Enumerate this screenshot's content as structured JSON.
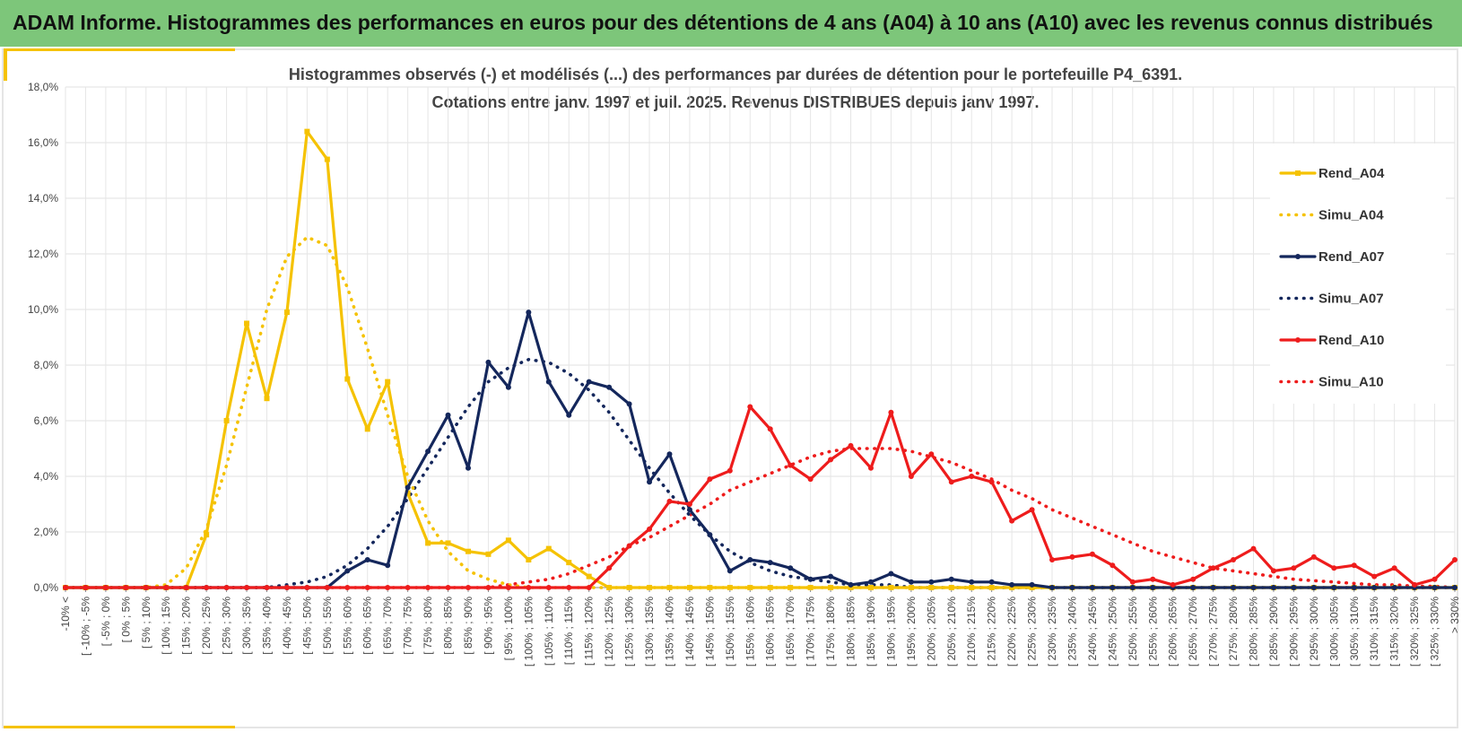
{
  "banner": {
    "title": "ADAM Informe. Histogrammes des performances en euros pour des détentions de 4 ans (A04) à 10 ans (A10) avec les revenus connus distribués"
  },
  "colors": {
    "banner_bg": "#7dc67a",
    "accent": "#f5c200",
    "A04": "#f5c200",
    "A07": "#14275c",
    "A10": "#ee1c1c"
  },
  "chart_data": {
    "type": "line",
    "title": "Histogrammes observés (-) et modélisés (...) des performances par durées de détention pour le portefeuille P4_6391.",
    "subtitle": "Cotations entre janv. 1997 et juil. 2025. Revenus DISTRIBUES depuis janv 1997.",
    "ylim": [
      0,
      18
    ],
    "yticks": [
      0,
      2,
      4,
      6,
      8,
      10,
      12,
      14,
      16,
      18
    ],
    "ytick_labels": [
      "0,0%",
      "2,0%",
      "4,0%",
      "6,0%",
      "8,0%",
      "10,0%",
      "12,0%",
      "14,0%",
      "16,0%",
      "18,0%"
    ],
    "grid": true,
    "legend_position": "right",
    "categories": [
      "-10% <",
      "[ -10% ; -5%",
      "[ -5% ; 0%",
      "[ 0% ; 5%",
      "[ 5% ; 10%",
      "[ 10% ; 15%",
      "[ 15% ; 20%",
      "[ 20% ; 25%",
      "[ 25% ; 30%",
      "[ 30% ; 35%",
      "[ 35% ; 40%",
      "[ 40% ; 45%",
      "[ 45% ; 50%",
      "[ 50% ; 55%",
      "[ 55% ; 60%",
      "[ 60% ; 65%",
      "[ 65% ; 70%",
      "[ 70% ; 75%",
      "[ 75% ; 80%",
      "[ 80% ; 85%",
      "[ 85% ; 90%",
      "[ 90% ; 95%",
      "[ 95% ; 100%",
      "[ 100% ; 105%",
      "[ 105% ; 110%",
      "[ 110% ; 115%",
      "[ 115% ; 120%",
      "[ 120% ; 125%",
      "[ 125% ; 130%",
      "[ 130% ; 135%",
      "[ 135% ; 140%",
      "[ 140% ; 145%",
      "[ 145% ; 150%",
      "[ 150% ; 155%",
      "[ 155% ; 160%",
      "[ 160% ; 165%",
      "[ 165% ; 170%",
      "[ 170% ; 175%",
      "[ 175% ; 180%",
      "[ 180% ; 185%",
      "[ 185% ; 190%",
      "[ 190% ; 195%",
      "[ 195% ; 200%",
      "[ 200% ; 205%",
      "[ 205% ; 210%",
      "[ 210% ; 215%",
      "[ 215% ; 220%",
      "[ 220% ; 225%",
      "[ 225% ; 230%",
      "[ 230% ; 235%",
      "[ 235% ; 240%",
      "[ 240% ; 245%",
      "[ 245% ; 250%",
      "[ 250% ; 255%",
      "[ 255% ; 260%",
      "[ 260% ; 265%",
      "[ 265% ; 270%",
      "[ 270% ; 275%",
      "[ 275% ; 280%",
      "[ 280% ; 285%",
      "[ 285% ; 290%",
      "[ 290% ; 295%",
      "[ 295% ; 300%",
      "[ 300% ; 305%",
      "[ 305% ; 310%",
      "[ 310% ; 315%",
      "[ 315% ; 320%",
      "[ 320% ; 325%",
      "[ 325% ; 330%",
      "> 330%"
    ],
    "series": [
      {
        "name": "Rend_A04",
        "style": "solid",
        "markers": "square",
        "color": "#f5c200",
        "values": [
          0,
          0,
          0,
          0,
          0,
          0,
          0,
          1.9,
          6.0,
          9.5,
          6.8,
          9.9,
          16.4,
          15.4,
          7.5,
          5.7,
          7.4,
          3.4,
          1.6,
          1.6,
          1.3,
          1.2,
          1.7,
          1.0,
          1.4,
          0.9,
          0.4,
          0,
          0,
          0,
          0,
          0,
          0,
          0,
          0,
          0,
          0,
          0,
          0,
          0,
          0,
          0,
          0,
          0,
          0,
          0,
          0,
          0,
          0,
          0,
          0,
          0,
          0,
          0,
          0,
          0,
          0,
          0,
          0,
          0,
          0,
          0,
          0,
          0,
          0,
          0,
          0,
          0,
          0,
          0
        ]
      },
      {
        "name": "Simu_A04",
        "style": "dotted",
        "markers": "none",
        "color": "#f5c200",
        "values": [
          0,
          0,
          0,
          0,
          0,
          0.1,
          0.7,
          2.1,
          4.4,
          7.2,
          10.0,
          11.9,
          12.6,
          12.3,
          10.8,
          8.6,
          6.2,
          4.0,
          2.4,
          1.3,
          0.6,
          0.3,
          0.1,
          0,
          0,
          0,
          0,
          0,
          0,
          0,
          0,
          0,
          0,
          0,
          0,
          0,
          0,
          0,
          0,
          0,
          0,
          0,
          0,
          0,
          0,
          0,
          0,
          0,
          0,
          0,
          0,
          0,
          0,
          0,
          0,
          0,
          0,
          0,
          0,
          0,
          0,
          0,
          0,
          0,
          0,
          0,
          0,
          0,
          0,
          0
        ]
      },
      {
        "name": "Rend_A07",
        "style": "solid",
        "markers": "circle",
        "color": "#14275c",
        "values": [
          0,
          0,
          0,
          0,
          0,
          0,
          0,
          0,
          0,
          0,
          0,
          0,
          0,
          0,
          0.6,
          1.0,
          0.8,
          3.6,
          4.9,
          6.2,
          4.3,
          8.1,
          7.2,
          9.9,
          7.4,
          6.2,
          7.4,
          7.2,
          6.6,
          3.8,
          4.8,
          2.8,
          1.9,
          0.6,
          1.0,
          0.9,
          0.7,
          0.3,
          0.4,
          0.1,
          0.2,
          0.5,
          0.2,
          0.2,
          0.3,
          0.2,
          0.2,
          0.1,
          0.1,
          0,
          0,
          0,
          0,
          0,
          0,
          0,
          0,
          0,
          0,
          0,
          0,
          0,
          0,
          0,
          0,
          0,
          0,
          0,
          0,
          0
        ]
      },
      {
        "name": "Simu_A07",
        "style": "dotted",
        "markers": "none",
        "color": "#14275c",
        "values": [
          0,
          0,
          0,
          0,
          0,
          0,
          0,
          0,
          0,
          0,
          0,
          0.1,
          0.2,
          0.4,
          0.8,
          1.4,
          2.2,
          3.2,
          4.3,
          5.4,
          6.5,
          7.4,
          7.9,
          8.2,
          8.1,
          7.7,
          7.1,
          6.3,
          5.3,
          4.3,
          3.4,
          2.6,
          1.9,
          1.3,
          0.9,
          0.6,
          0.4,
          0.3,
          0.2,
          0.1,
          0.1,
          0.1,
          0,
          0,
          0,
          0,
          0,
          0,
          0,
          0,
          0,
          0,
          0,
          0,
          0,
          0,
          0,
          0,
          0,
          0,
          0,
          0,
          0,
          0,
          0,
          0,
          0,
          0,
          0,
          0
        ]
      },
      {
        "name": "Rend_A10",
        "style": "solid",
        "markers": "circle",
        "color": "#ee1c1c",
        "values": [
          0,
          0,
          0,
          0,
          0,
          0,
          0,
          0,
          0,
          0,
          0,
          0,
          0,
          0,
          0,
          0,
          0,
          0,
          0,
          0,
          0,
          0,
          0,
          0,
          0,
          0,
          0,
          0.7,
          1.5,
          2.1,
          3.1,
          3.0,
          3.9,
          4.2,
          6.5,
          5.7,
          4.4,
          3.9,
          4.6,
          5.1,
          4.3,
          6.3,
          4.0,
          4.8,
          3.8,
          4.0,
          3.8,
          2.4,
          2.8,
          1.0,
          1.1,
          1.2,
          0.8,
          0.2,
          0.3,
          0.1,
          0.3,
          0.7,
          1.0,
          1.4,
          0.6,
          0.7,
          1.1,
          0.7,
          0.8,
          0.4,
          0.7,
          0.1,
          0.3,
          1.0
        ]
      },
      {
        "name": "Simu_A10",
        "style": "dotted",
        "markers": "none",
        "color": "#ee1c1c",
        "values": [
          0,
          0,
          0,
          0,
          0,
          0,
          0,
          0,
          0,
          0,
          0,
          0,
          0,
          0,
          0,
          0,
          0,
          0,
          0,
          0,
          0,
          0,
          0.1,
          0.2,
          0.3,
          0.5,
          0.8,
          1.1,
          1.5,
          1.8,
          2.2,
          2.6,
          3.0,
          3.5,
          3.8,
          4.1,
          4.4,
          4.7,
          4.9,
          5.0,
          5.0,
          5.0,
          4.9,
          4.7,
          4.5,
          4.2,
          3.9,
          3.5,
          3.2,
          2.8,
          2.5,
          2.2,
          1.9,
          1.6,
          1.3,
          1.1,
          0.9,
          0.7,
          0.6,
          0.5,
          0.4,
          0.3,
          0.25,
          0.2,
          0.15,
          0.1,
          0.1,
          0.05,
          0.05,
          0
        ]
      }
    ]
  }
}
